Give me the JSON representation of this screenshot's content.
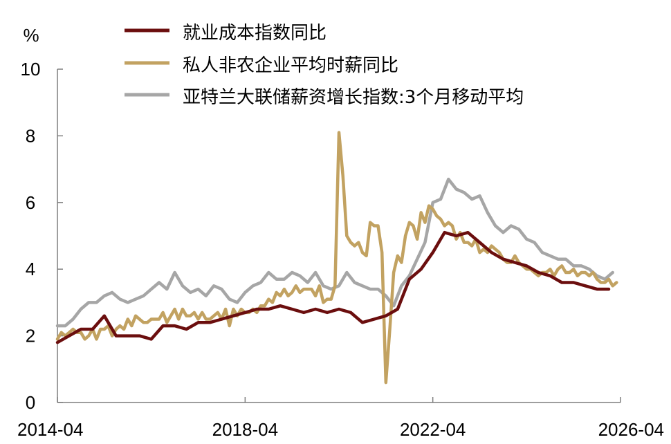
{
  "chart_data": {
    "type": "line",
    "title": "",
    "xlabel": "",
    "ylabel": "%",
    "ylim": [
      0,
      10
    ],
    "yticks": [
      "0",
      "2",
      "4",
      "6",
      "8",
      "10"
    ],
    "xticks": [
      "2014-04",
      "2018-04",
      "2022-04",
      "2026-04"
    ],
    "xlim": [
      "2014-04",
      "2026-04"
    ],
    "grid": false,
    "legend_position": "top",
    "series": [
      {
        "name": "就业成本指数同比",
        "color": "#6b0e0e",
        "x": [
          "2014-04",
          "2014-07",
          "2014-10",
          "2015-01",
          "2015-04",
          "2015-07",
          "2015-10",
          "2016-01",
          "2016-04",
          "2016-07",
          "2016-10",
          "2017-01",
          "2017-04",
          "2017-07",
          "2017-10",
          "2018-01",
          "2018-04",
          "2018-07",
          "2018-10",
          "2019-01",
          "2019-04",
          "2019-07",
          "2019-10",
          "2020-01",
          "2020-04",
          "2020-07",
          "2020-10",
          "2021-01",
          "2021-04",
          "2021-07",
          "2021-10",
          "2022-01",
          "2022-04",
          "2022-07",
          "2022-10",
          "2023-01",
          "2023-04",
          "2023-07",
          "2023-10",
          "2024-01",
          "2024-04",
          "2024-07",
          "2024-10",
          "2025-01",
          "2025-04",
          "2025-07",
          "2025-10",
          "2026-01"
        ],
        "values": [
          1.8,
          2.0,
          2.2,
          2.2,
          2.6,
          2.0,
          2.0,
          2.0,
          1.9,
          2.3,
          2.3,
          2.2,
          2.4,
          2.4,
          2.5,
          2.6,
          2.7,
          2.8,
          2.8,
          2.9,
          2.8,
          2.7,
          2.8,
          2.7,
          2.8,
          2.7,
          2.4,
          2.5,
          2.6,
          2.8,
          3.7,
          4.0,
          4.5,
          5.1,
          5.0,
          5.1,
          4.8,
          4.5,
          4.3,
          4.2,
          4.1,
          3.9,
          3.8,
          3.6,
          3.6,
          3.5,
          3.4,
          3.4
        ]
      },
      {
        "name": "私人非农企业平均时薪同比",
        "color": "#c2a261",
        "x": [
          "2014-04",
          "2014-05",
          "2014-06",
          "2014-07",
          "2014-08",
          "2014-09",
          "2014-10",
          "2014-11",
          "2014-12",
          "2015-01",
          "2015-02",
          "2015-03",
          "2015-04",
          "2015-05",
          "2015-06",
          "2015-07",
          "2015-08",
          "2015-09",
          "2015-10",
          "2015-11",
          "2015-12",
          "2016-01",
          "2016-02",
          "2016-03",
          "2016-04",
          "2016-05",
          "2016-06",
          "2016-07",
          "2016-08",
          "2016-09",
          "2016-10",
          "2016-11",
          "2016-12",
          "2017-01",
          "2017-02",
          "2017-03",
          "2017-04",
          "2017-05",
          "2017-06",
          "2017-07",
          "2017-08",
          "2017-09",
          "2017-10",
          "2017-11",
          "2017-12",
          "2018-01",
          "2018-02",
          "2018-03",
          "2018-04",
          "2018-05",
          "2018-06",
          "2018-07",
          "2018-08",
          "2018-09",
          "2018-10",
          "2018-11",
          "2018-12",
          "2019-01",
          "2019-02",
          "2019-03",
          "2019-04",
          "2019-05",
          "2019-06",
          "2019-07",
          "2019-08",
          "2019-09",
          "2019-10",
          "2019-11",
          "2019-12",
          "2020-01",
          "2020-02",
          "2020-03",
          "2020-04",
          "2020-05",
          "2020-06",
          "2020-07",
          "2020-08",
          "2020-09",
          "2020-10",
          "2020-11",
          "2020-12",
          "2021-01",
          "2021-02",
          "2021-03",
          "2021-04",
          "2021-05",
          "2021-06",
          "2021-07",
          "2021-08",
          "2021-09",
          "2021-10",
          "2021-11",
          "2021-12",
          "2022-01",
          "2022-02",
          "2022-03",
          "2022-04",
          "2022-05",
          "2022-06",
          "2022-07",
          "2022-08",
          "2022-09",
          "2022-10",
          "2022-11",
          "2022-12",
          "2023-01",
          "2023-02",
          "2023-03",
          "2023-04",
          "2023-05",
          "2023-06",
          "2023-07",
          "2023-08",
          "2023-09",
          "2023-10",
          "2023-11",
          "2023-12",
          "2024-01",
          "2024-02",
          "2024-03",
          "2024-04",
          "2024-05",
          "2024-06",
          "2024-07",
          "2024-08",
          "2024-09",
          "2024-10",
          "2024-11",
          "2024-12",
          "2025-01",
          "2025-02",
          "2025-03",
          "2025-04",
          "2025-05",
          "2025-06",
          "2025-07",
          "2025-08",
          "2025-09",
          "2025-10",
          "2025-11",
          "2025-12",
          "2026-01",
          "2026-02",
          "2026-03"
        ],
        "values": [
          1.9,
          2.1,
          2.0,
          2.1,
          2.2,
          2.1,
          2.1,
          1.9,
          2.0,
          2.2,
          1.9,
          2.2,
          2.2,
          2.3,
          2.0,
          2.2,
          2.3,
          2.2,
          2.5,
          2.3,
          2.6,
          2.5,
          2.4,
          2.4,
          2.5,
          2.5,
          2.5,
          2.7,
          2.4,
          2.6,
          2.8,
          2.5,
          2.8,
          2.6,
          2.6,
          2.7,
          2.5,
          2.7,
          2.5,
          2.5,
          2.6,
          2.7,
          2.5,
          2.8,
          2.3,
          2.8,
          2.6,
          2.8,
          2.7,
          2.7,
          2.8,
          2.7,
          2.9,
          2.9,
          3.1,
          3.0,
          3.3,
          3.2,
          3.4,
          3.2,
          3.3,
          3.5,
          3.3,
          3.4,
          3.4,
          3.4,
          3.2,
          3.5,
          3.0,
          3.1,
          3.1,
          3.5,
          8.1,
          6.8,
          5.0,
          4.8,
          4.7,
          4.8,
          4.5,
          4.4,
          5.4,
          5.3,
          5.3,
          4.5,
          0.6,
          2.2,
          3.9,
          4.4,
          4.2,
          5.0,
          5.4,
          5.3,
          4.9,
          5.7,
          5.4,
          5.9,
          5.8,
          5.6,
          5.5,
          5.3,
          5.4,
          5.3,
          4.9,
          5.1,
          4.8,
          4.8,
          4.7,
          4.9,
          4.5,
          4.6,
          4.5,
          4.7,
          4.6,
          4.5,
          4.3,
          4.2,
          4.2,
          4.4,
          4.2,
          4.1,
          4.0,
          4.0,
          3.9,
          3.8,
          3.9,
          3.9,
          4.0,
          3.8,
          4.0,
          4.1,
          3.9,
          3.9,
          4.0,
          3.8,
          3.9,
          3.9,
          3.8,
          3.9,
          3.7,
          3.6,
          3.6,
          3.7,
          3.5,
          3.6
        ]
      },
      {
        "name": "亚特兰大联储薪资增长指数:3个月移动平均",
        "color": "#a6a6a6",
        "x": [
          "2014-04",
          "2014-06",
          "2014-08",
          "2014-10",
          "2014-12",
          "2015-02",
          "2015-04",
          "2015-06",
          "2015-08",
          "2015-10",
          "2015-12",
          "2016-02",
          "2016-04",
          "2016-06",
          "2016-08",
          "2016-10",
          "2016-12",
          "2017-02",
          "2017-04",
          "2017-06",
          "2017-08",
          "2017-10",
          "2017-12",
          "2018-02",
          "2018-04",
          "2018-06",
          "2018-08",
          "2018-10",
          "2018-12",
          "2019-02",
          "2019-04",
          "2019-06",
          "2019-08",
          "2019-10",
          "2019-12",
          "2020-02",
          "2020-04",
          "2020-06",
          "2020-08",
          "2020-10",
          "2020-12",
          "2021-02",
          "2021-04",
          "2021-06",
          "2021-08",
          "2021-10",
          "2021-12",
          "2022-02",
          "2022-04",
          "2022-06",
          "2022-08",
          "2022-10",
          "2022-12",
          "2023-02",
          "2023-04",
          "2023-06",
          "2023-08",
          "2023-10",
          "2023-12",
          "2024-02",
          "2024-04",
          "2024-06",
          "2024-08",
          "2024-10",
          "2024-12",
          "2025-02",
          "2025-04",
          "2025-06",
          "2025-08",
          "2025-10",
          "2025-12",
          "2026-02"
        ],
        "values": [
          2.3,
          2.3,
          2.5,
          2.8,
          3.0,
          3.0,
          3.2,
          3.3,
          3.1,
          3.0,
          3.1,
          3.2,
          3.4,
          3.6,
          3.4,
          3.9,
          3.5,
          3.3,
          3.4,
          3.2,
          3.5,
          3.4,
          3.1,
          3.0,
          3.3,
          3.5,
          3.6,
          3.9,
          3.7,
          3.7,
          3.9,
          3.8,
          3.6,
          3.9,
          3.5,
          3.4,
          3.5,
          3.9,
          3.6,
          3.5,
          3.4,
          3.4,
          3.2,
          2.9,
          3.5,
          3.8,
          4.3,
          4.8,
          6.0,
          6.1,
          6.7,
          6.4,
          6.3,
          6.1,
          6.2,
          5.7,
          5.3,
          5.1,
          5.3,
          5.2,
          4.9,
          4.8,
          4.5,
          4.4,
          4.3,
          4.3,
          4.1,
          4.1,
          4.0,
          3.8,
          3.7,
          3.9
        ]
      }
    ]
  }
}
